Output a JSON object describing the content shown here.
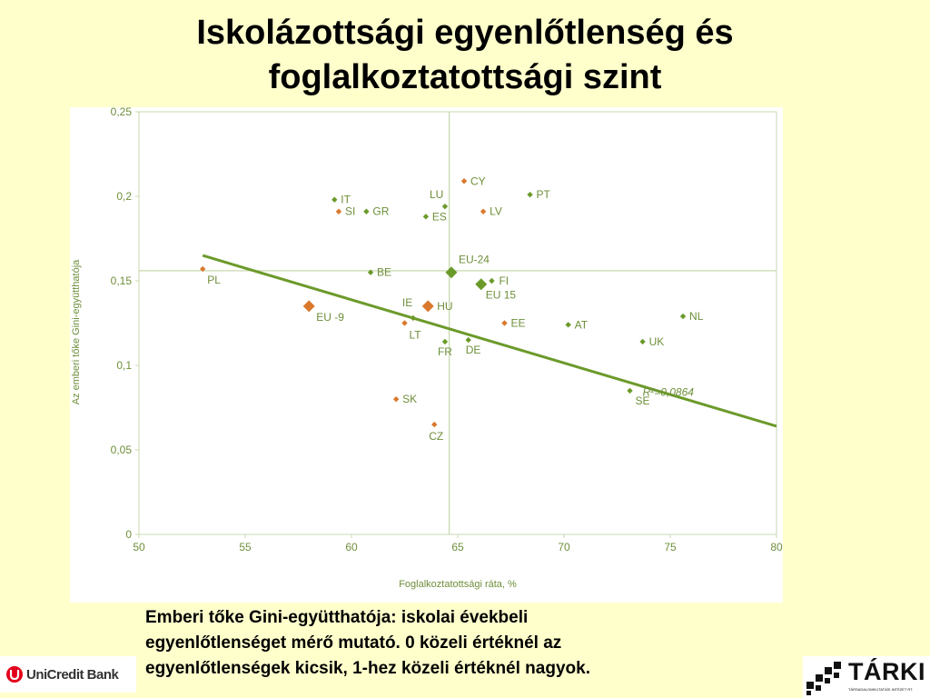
{
  "slide": {
    "title_line1": "Iskolázottsági egyenlőtlenség és",
    "title_line2": "foglalkoztatottsági szint",
    "caption_line1": "Emberi tőke Gini-együtthatója: iskolai évekbeli",
    "caption_line2": "egyenlőtlenséget mérő mutató. 0 közeli értéknél az",
    "caption_line3": "egyenlőtlenségek kicsik, 1-hez közeli értéknél nagyok."
  },
  "logos": {
    "unicredit": "UniCredit Bank",
    "tarki": "TÁRKI",
    "tarki_sub": "TÁRSADALOMKUTATÁSI INTÉZET RT."
  },
  "colors": {
    "green": "#6b9a2a",
    "orange": "#d9782c",
    "axis_text": "#6e8f3a",
    "grid": "#c8d8b0"
  },
  "chart_data": {
    "type": "scatter",
    "xlabel": "Foglalkoztatottsági ráta, %",
    "ylabel": "Az emberi tőke Gini-együtthatója",
    "xlim": [
      50,
      80
    ],
    "ylim": [
      0,
      0.25
    ],
    "x_ticks": [
      "50",
      "55",
      "60",
      "65",
      "70",
      "75",
      "80"
    ],
    "y_ticks": [
      "0",
      "0,05",
      "0,1",
      "0,15",
      "0,2",
      "0,25"
    ],
    "reference_lines": {
      "x": 64.6,
      "y": 0.156
    },
    "trendline": {
      "from": [
        53.0,
        0.165
      ],
      "to": [
        80.0,
        0.064
      ],
      "label": "R²=0,0864"
    },
    "points": [
      {
        "label": "PL",
        "x": 53.0,
        "y": 0.157,
        "color": "orange",
        "big": false
      },
      {
        "label": "EU -9",
        "x": 58.0,
        "y": 0.135,
        "color": "orange",
        "big": true
      },
      {
        "label": "IT",
        "x": 59.2,
        "y": 0.198,
        "color": "green",
        "big": false
      },
      {
        "label": "SI",
        "x": 59.4,
        "y": 0.191,
        "color": "orange",
        "big": false
      },
      {
        "label": "GR",
        "x": 60.7,
        "y": 0.191,
        "color": "green",
        "big": false
      },
      {
        "label": "BE",
        "x": 60.9,
        "y": 0.155,
        "color": "green",
        "big": false
      },
      {
        "label": "IE",
        "x": 62.9,
        "y": 0.128,
        "color": "green",
        "big": false
      },
      {
        "label": "LT",
        "x": 62.5,
        "y": 0.125,
        "color": "orange",
        "big": false
      },
      {
        "label": "HU",
        "x": 63.6,
        "y": 0.135,
        "color": "orange",
        "big": true
      },
      {
        "label": "LU",
        "x": 64.4,
        "y": 0.194,
        "color": "green",
        "big": false
      },
      {
        "label": "ES",
        "x": 63.5,
        "y": 0.188,
        "color": "green",
        "big": false
      },
      {
        "label": "CY",
        "x": 65.3,
        "y": 0.209,
        "color": "orange",
        "big": false
      },
      {
        "label": "LV",
        "x": 66.2,
        "y": 0.191,
        "color": "orange",
        "big": false
      },
      {
        "label": "PT",
        "x": 68.4,
        "y": 0.201,
        "color": "green",
        "big": false
      },
      {
        "label": "EU-24",
        "x": 64.7,
        "y": 0.155,
        "color": "green",
        "big": true
      },
      {
        "label": "FI",
        "x": 66.6,
        "y": 0.15,
        "color": "green",
        "big": false
      },
      {
        "label": "EU 15",
        "x": 66.1,
        "y": 0.148,
        "color": "green",
        "big": true
      },
      {
        "label": "EE",
        "x": 67.2,
        "y": 0.125,
        "color": "orange",
        "big": false
      },
      {
        "label": "AT",
        "x": 70.2,
        "y": 0.124,
        "color": "green",
        "big": false
      },
      {
        "label": "FR",
        "x": 64.4,
        "y": 0.114,
        "color": "green",
        "big": false
      },
      {
        "label": "DE",
        "x": 65.5,
        "y": 0.115,
        "color": "green",
        "big": false
      },
      {
        "label": "NL",
        "x": 75.6,
        "y": 0.129,
        "color": "green",
        "big": false
      },
      {
        "label": "UK",
        "x": 73.7,
        "y": 0.114,
        "color": "green",
        "big": false
      },
      {
        "label": "SE",
        "x": 73.1,
        "y": 0.085,
        "color": "green",
        "big": false
      },
      {
        "label": "SK",
        "x": 62.1,
        "y": 0.08,
        "color": "orange",
        "big": false
      },
      {
        "label": "CZ",
        "x": 63.9,
        "y": 0.065,
        "color": "orange",
        "big": false
      }
    ]
  }
}
